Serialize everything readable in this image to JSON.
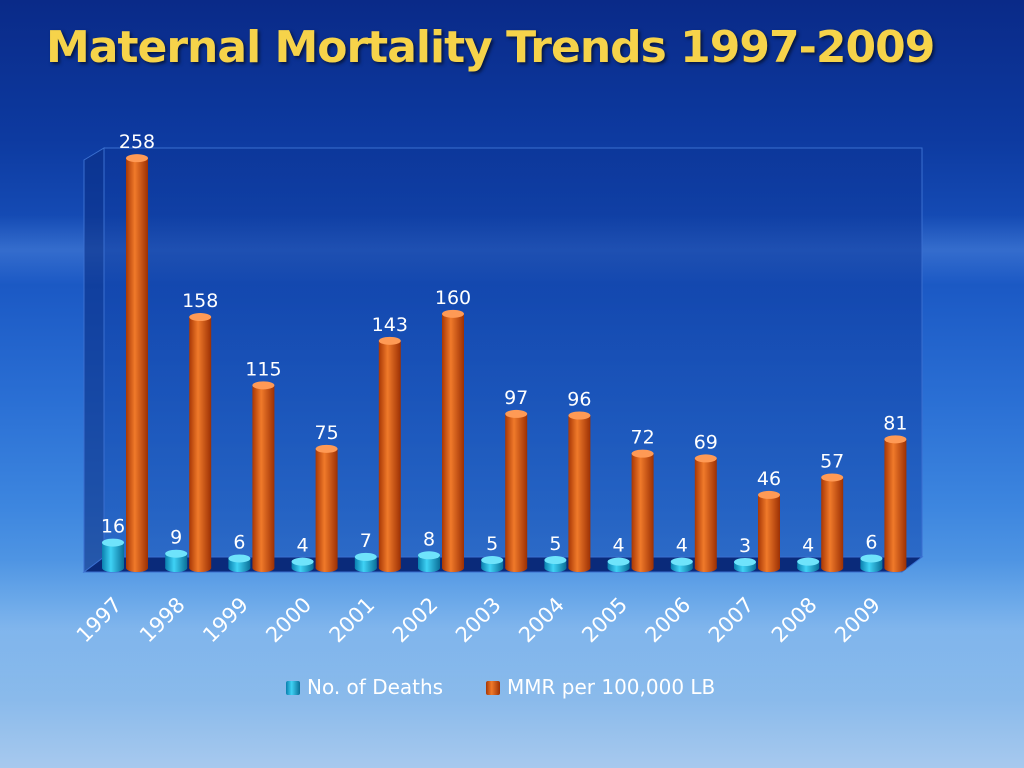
{
  "slide": {
    "title": "Maternal Mortality Trends 1997-2009"
  },
  "colors": {
    "title": "#f6d34a",
    "deaths_series": "#21b8e0",
    "mmr_series": "#e0570f",
    "plot_back": "#0d3d9e"
  },
  "chart_data": {
    "type": "bar",
    "title": "",
    "xlabel": "",
    "ylabel": "",
    "categories": [
      "1997",
      "1998",
      "1999",
      "2000",
      "2001",
      "2002",
      "2003",
      "2004",
      "2005",
      "2006",
      "2007",
      "2008",
      "2009"
    ],
    "series": [
      {
        "name": "No. of Deaths",
        "values": [
          16,
          9,
          6,
          4,
          7,
          8,
          5,
          5,
          4,
          4,
          3,
          4,
          6
        ],
        "color": "#21b8e0"
      },
      {
        "name": "MMR per 100,000 LB",
        "values": [
          258,
          158,
          115,
          75,
          143,
          160,
          97,
          96,
          72,
          69,
          46,
          57,
          81
        ],
        "color": "#e0570f"
      }
    ],
    "ylim": [
      0,
      260
    ],
    "grid": false,
    "legend_position": "bottom",
    "data_labels": true,
    "style": "3d-cylinder"
  }
}
